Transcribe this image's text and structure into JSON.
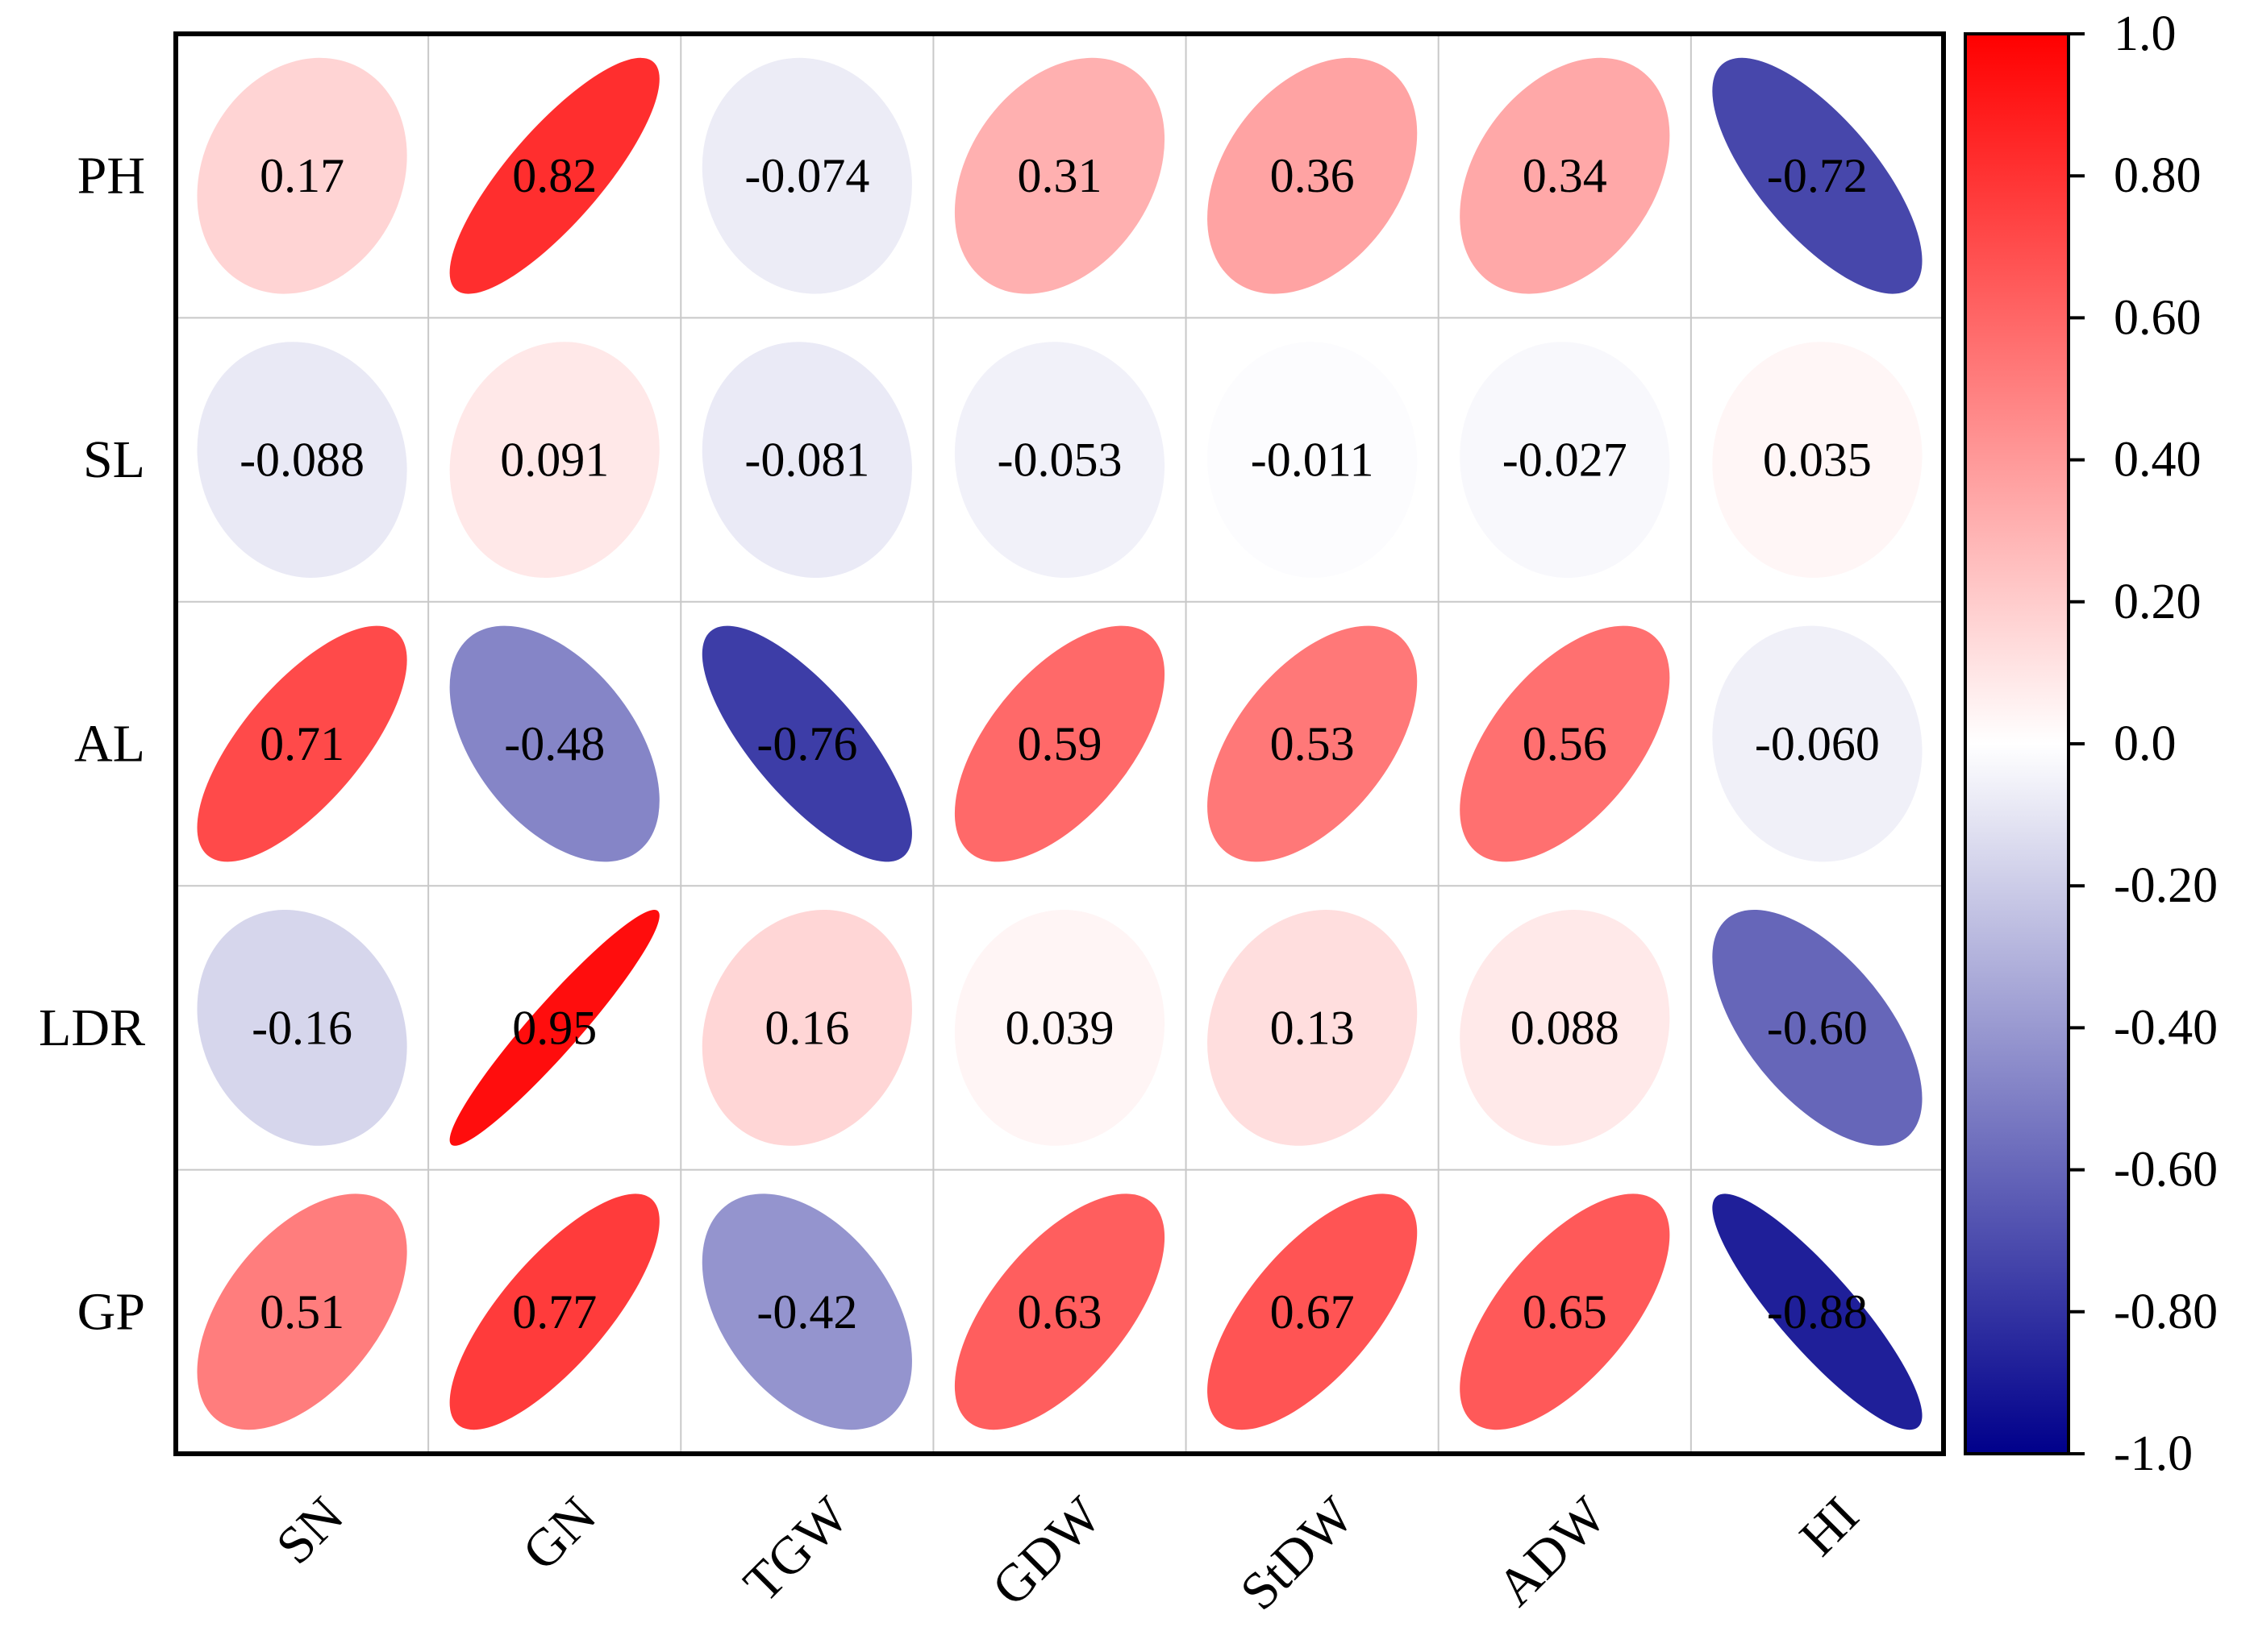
{
  "chart_data": {
    "type": "heatmap",
    "subtype": "correlation-ellipse",
    "row_labels": [
      "PH",
      "SL",
      "AL",
      "LDR",
      "GP"
    ],
    "col_labels": [
      "SN",
      "GN",
      "TGW",
      "GDW",
      "StDW",
      "ADW",
      "HI"
    ],
    "values": [
      [
        0.17,
        0.82,
        -0.074,
        0.31,
        0.36,
        0.34,
        -0.72
      ],
      [
        -0.088,
        0.091,
        -0.081,
        -0.053,
        -0.011,
        -0.027,
        0.035
      ],
      [
        0.71,
        -0.48,
        -0.76,
        0.59,
        0.53,
        0.56,
        -0.06
      ],
      [
        -0.16,
        0.95,
        0.16,
        0.039,
        0.13,
        0.088,
        -0.6
      ],
      [
        0.51,
        0.77,
        -0.42,
        0.63,
        0.67,
        0.65,
        -0.88
      ]
    ],
    "value_labels": [
      [
        "0.17",
        "0.82",
        "-0.074",
        "0.31",
        "0.36",
        "0.34",
        "-0.72"
      ],
      [
        "-0.088",
        "0.091",
        "-0.081",
        "-0.053",
        "-0.011",
        "-0.027",
        "0.035"
      ],
      [
        "0.71",
        "-0.48",
        "-0.76",
        "0.59",
        "0.53",
        "0.56",
        "-0.060"
      ],
      [
        "-0.16",
        "0.95",
        "0.16",
        "0.039",
        "0.13",
        "0.088",
        "-0.60"
      ],
      [
        "0.51",
        "0.77",
        "-0.42",
        "0.63",
        "0.67",
        "0.65",
        "-0.88"
      ]
    ],
    "colorbar": {
      "range": [
        -1.0,
        1.0
      ],
      "ticks": [
        1.0,
        0.8,
        0.6,
        0.4,
        0.2,
        0.0,
        -0.2,
        -0.4,
        -0.6,
        -0.8,
        -1.0
      ],
      "tick_labels": [
        "1.0",
        "0.80",
        "0.60",
        "0.40",
        "0.20",
        "0.0",
        "-0.20",
        "-0.40",
        "-0.60",
        "-0.80",
        "-1.0"
      ],
      "colors": {
        "low": "#00008b",
        "mid": "#ffffff",
        "high": "#ff0000"
      }
    },
    "legend_position": "right",
    "grid": true,
    "title": "",
    "xlabel": "",
    "ylabel": ""
  }
}
